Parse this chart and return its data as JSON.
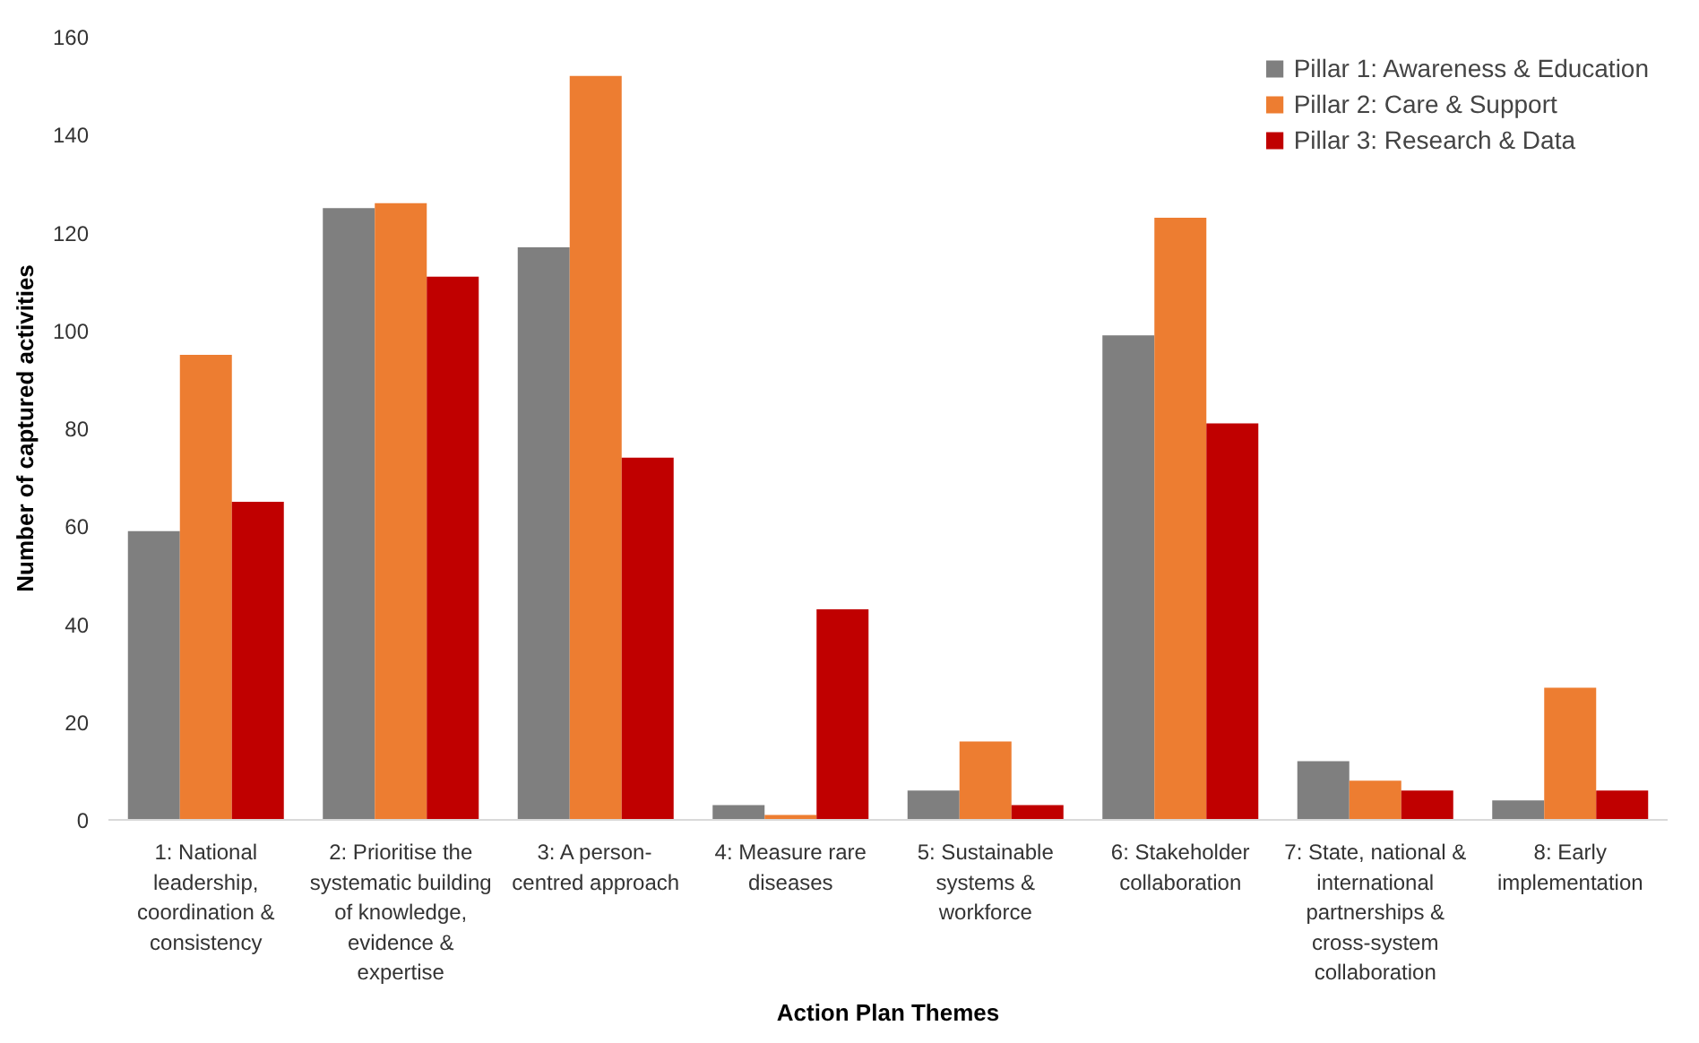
{
  "chart_data": {
    "type": "bar",
    "xlabel": "Action Plan Themes",
    "ylabel": "Number of captured activities",
    "categories": [
      "1: National\nleadership,\ncoordination &\nconsistency",
      "2: Prioritise the\nsystematic building\nof knowledge,\nevidence &\nexpertise",
      "3: A person-\ncentred approach",
      "4: Measure rare\ndiseases",
      "5: Sustainable\nsystems &\nworkforce",
      "6: Stakeholder\ncollaboration",
      "7: State, national &\ninternational\npartnerships &\ncross-system\ncollaboration",
      "8: Early\nimplementation"
    ],
    "series": [
      {
        "name": "Pillar 1: Awareness & Education",
        "color": "#7f7f7f",
        "values": [
          59,
          125,
          117,
          3,
          6,
          99,
          12,
          4
        ]
      },
      {
        "name": "Pillar 2: Care & Support",
        "color": "#ed7d31",
        "values": [
          95,
          126,
          152,
          1,
          16,
          123,
          8,
          27
        ]
      },
      {
        "name": "Pillar 3: Research & Data",
        "color": "#c00000",
        "values": [
          65,
          111,
          74,
          43,
          3,
          81,
          6,
          6
        ]
      }
    ],
    "ylim": [
      0,
      160
    ],
    "yticks": [
      0,
      20,
      40,
      60,
      80,
      100,
      120,
      140,
      160
    ],
    "grid": false,
    "legend": "top right"
  }
}
